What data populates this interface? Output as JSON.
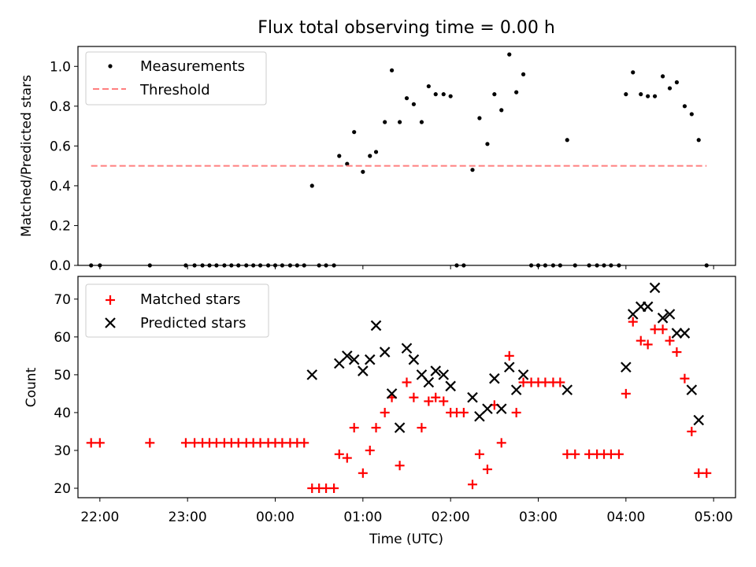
{
  "chart_data": [
    {
      "type": "scatter",
      "title": "Flux total observing time = 0.00 h",
      "ylabel": "Matched/Predicted stars",
      "xlabel": "",
      "ylim": [
        0,
        1.1
      ],
      "yticks": [
        0.0,
        0.2,
        0.4,
        0.6,
        0.8,
        1.0
      ],
      "legend": "top-left",
      "series": [
        {
          "name": "Measurements",
          "marker": "dot",
          "color": "#000000",
          "x": [
            -2.1,
            -2.0,
            -1.43,
            -1.02,
            -0.92,
            -0.83,
            -0.75,
            -0.67,
            -0.58,
            -0.5,
            -0.42,
            -0.33,
            -0.25,
            -0.17,
            -0.08,
            0.0,
            0.08,
            0.17,
            0.25,
            0.33,
            0.42,
            0.5,
            0.58,
            0.67,
            0.73,
            0.82,
            0.9,
            1.0,
            1.08,
            1.15,
            1.25,
            1.33,
            1.42,
            1.5,
            1.58,
            1.67,
            1.75,
            1.83,
            1.92,
            2.0,
            2.07,
            2.15,
            2.25,
            2.33,
            2.42,
            2.5,
            2.58,
            2.67,
            2.75,
            2.83,
            2.92,
            3.0,
            3.08,
            3.17,
            3.25,
            3.33,
            3.42,
            3.58,
            3.67,
            3.75,
            3.83,
            3.92,
            4.0,
            4.08,
            4.17,
            4.25,
            4.33,
            4.42,
            4.5,
            4.58,
            4.67,
            4.75,
            4.83,
            4.92
          ],
          "y": [
            0.0,
            0.0,
            0.0,
            0.0,
            0.0,
            0.0,
            0.0,
            0.0,
            0.0,
            0.0,
            0.0,
            0.0,
            0.0,
            0.0,
            0.0,
            0.0,
            0.0,
            0.0,
            0.0,
            0.0,
            0.4,
            0.0,
            0.0,
            0.0,
            0.55,
            0.51,
            0.67,
            0.47,
            0.55,
            0.57,
            0.72,
            0.98,
            0.72,
            0.84,
            0.81,
            0.72,
            0.9,
            0.86,
            0.86,
            0.85,
            0.0,
            0.0,
            0.48,
            0.74,
            0.61,
            0.86,
            0.78,
            1.06,
            0.87,
            0.96,
            0.0,
            0.0,
            0.0,
            0.0,
            0.0,
            0.63,
            0.0,
            0.0,
            0.0,
            0.0,
            0.0,
            0.0,
            0.86,
            0.97,
            0.86,
            0.85,
            0.85,
            0.95,
            0.89,
            0.92,
            0.8,
            0.76,
            0.63,
            0.0
          ]
        },
        {
          "name": "Threshold",
          "marker": "dashed-line",
          "color": "#ff7f7f",
          "x": [
            -2.1,
            4.92
          ],
          "y": [
            0.5,
            0.5
          ]
        }
      ]
    },
    {
      "type": "scatter",
      "title": "",
      "ylabel": "Count",
      "xlabel": "Time (UTC)",
      "ylim": [
        17.5,
        76
      ],
      "yticks": [
        20,
        30,
        40,
        50,
        60,
        70
      ],
      "xlim": [
        -2.25,
        5.25
      ],
      "xticks": [
        -2,
        -1,
        0,
        1,
        2,
        3,
        4,
        5
      ],
      "xtick_labels": [
        "22:00",
        "23:00",
        "00:00",
        "01:00",
        "02:00",
        "03:00",
        "04:00",
        "05:00"
      ],
      "legend": "top-left",
      "series": [
        {
          "name": "Matched stars",
          "marker": "plus",
          "color": "#ff0000",
          "x": [
            -2.1,
            -2.0,
            -1.43,
            -1.02,
            -0.92,
            -0.83,
            -0.75,
            -0.67,
            -0.58,
            -0.5,
            -0.42,
            -0.33,
            -0.25,
            -0.17,
            -0.08,
            0.0,
            0.08,
            0.17,
            0.25,
            0.33,
            0.42,
            0.5,
            0.58,
            0.67,
            0.73,
            0.82,
            0.9,
            1.0,
            1.08,
            1.15,
            1.25,
            1.33,
            1.42,
            1.5,
            1.58,
            1.67,
            1.75,
            1.83,
            1.92,
            2.0,
            2.07,
            2.15,
            2.25,
            2.33,
            2.42,
            2.5,
            2.58,
            2.67,
            2.75,
            2.83,
            2.92,
            3.0,
            3.08,
            3.17,
            3.25,
            3.33,
            3.42,
            3.58,
            3.67,
            3.75,
            3.83,
            3.92,
            4.0,
            4.08,
            4.17,
            4.25,
            4.33,
            4.42,
            4.5,
            4.58,
            4.67,
            4.75,
            4.83,
            4.92
          ],
          "y": [
            32,
            32,
            32,
            32,
            32,
            32,
            32,
            32,
            32,
            32,
            32,
            32,
            32,
            32,
            32,
            32,
            32,
            32,
            32,
            32,
            20,
            20,
            20,
            20,
            29,
            28,
            36,
            24,
            30,
            36,
            40,
            44,
            26,
            48,
            44,
            36,
            43,
            44,
            43,
            40,
            40,
            40,
            21,
            29,
            25,
            42,
            32,
            55,
            40,
            48,
            48,
            48,
            48,
            48,
            48,
            29,
            29,
            29,
            29,
            29,
            29,
            29,
            45,
            64,
            59,
            58,
            62,
            62,
            59,
            56,
            49,
            35,
            24,
            24
          ]
        },
        {
          "name": "Predicted stars",
          "marker": "cross",
          "color": "#000000",
          "x": [
            0.42,
            0.73,
            0.82,
            0.9,
            1.0,
            1.08,
            1.15,
            1.25,
            1.33,
            1.42,
            1.5,
            1.58,
            1.67,
            1.75,
            1.83,
            1.92,
            2.0,
            2.25,
            2.33,
            2.42,
            2.5,
            2.58,
            2.67,
            2.75,
            2.83,
            3.33,
            4.0,
            4.08,
            4.17,
            4.25,
            4.33,
            4.42,
            4.5,
            4.58,
            4.67,
            4.75,
            4.83
          ],
          "y": [
            50,
            53,
            55,
            54,
            51,
            54,
            63,
            56,
            45,
            36,
            57,
            54,
            50,
            48,
            51,
            50,
            47,
            44,
            39,
            41,
            49,
            41,
            52,
            46,
            50,
            46,
            52,
            66,
            68,
            68,
            73,
            65,
            66,
            61,
            61,
            46,
            38
          ]
        }
      ]
    }
  ]
}
